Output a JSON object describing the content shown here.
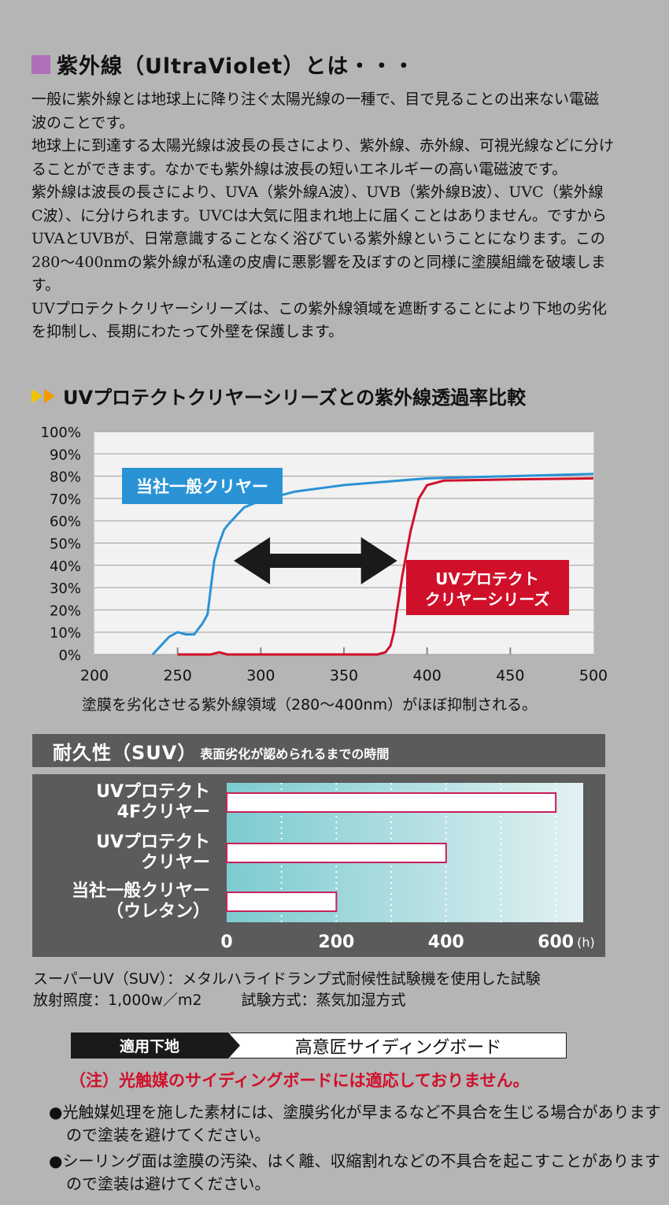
{
  "section": {
    "title": "紫外線（UltraViolet）とは・・・",
    "paragraphs": [
      "一般に紫外線とは地球上に降り注ぐ太陽光線の一種で、目で見ることの出来ない電磁波のことです。",
      "地球上に到達する太陽光線は波長の長さにより、紫外線、赤外線、可視光線などに分けることができます。なかでも紫外線は波長の短いエネルギーの高い電磁波です。",
      "紫外線は波長の長さにより、UVA（紫外線A波）、UVB（紫外線B波）、UVC（紫外線C波）、に分けられます。UVCは大気に阻まれ地上に届くことはありません。ですからUVAとUVBが、日常意識することなく浴びている紫外線ということになります。この280〜400nmの紫外線が私達の皮膚に悪影響を及ぼすのと同様に塗膜組織を破壊します。",
      "UVプロテクトクリヤーシリーズは、この紫外線領域を遮断することにより下地の劣化を抑制し、長期にわたって外壁を保護します。"
    ]
  },
  "chart_data": [
    {
      "type": "line",
      "title": "UVプロテクトクリヤーシリーズとの紫外線透過率比較",
      "x_ticks": [
        "200",
        "250",
        "300",
        "350",
        "400",
        "450",
        "500"
      ],
      "y_ticks": [
        "0%",
        "10%",
        "20%",
        "30%",
        "40%",
        "50%",
        "60%",
        "70%",
        "80%",
        "90%",
        "100%"
      ],
      "xlim": [
        200,
        500
      ],
      "ylim": [
        0,
        100
      ],
      "series": [
        {
          "name": "当社一般クリヤー",
          "color": "#2a93d5",
          "x": [
            235,
            240,
            245,
            250,
            255,
            260,
            263,
            265,
            268,
            270,
            272,
            275,
            278,
            280,
            285,
            290,
            300,
            320,
            350,
            400,
            450,
            500
          ],
          "y": [
            0,
            4,
            8,
            10,
            9,
            9,
            12,
            14,
            18,
            30,
            42,
            50,
            56,
            58,
            62,
            66,
            69,
            73,
            76,
            79,
            80,
            81
          ]
        },
        {
          "name": "UVプロテクト クリヤーシリーズ",
          "color": "#d0102a",
          "x": [
            250,
            270,
            275,
            280,
            285,
            300,
            350,
            370,
            375,
            378,
            380,
            382,
            385,
            390,
            395,
            400,
            410,
            450,
            500
          ],
          "y": [
            0,
            0,
            1,
            0,
            0,
            0,
            0,
            0,
            1,
            4,
            10,
            20,
            35,
            55,
            70,
            76,
            78,
            78.5,
            79
          ]
        }
      ],
      "arrow": {
        "from": 280,
        "to": 400
      },
      "caption": "塗膜を劣化させる紫外線領域（280〜400nm）がほぼ抑制される。",
      "grid": true
    },
    {
      "type": "bar",
      "title": "耐久性（SUV）",
      "subtitle": "表面劣化が認められるまでの時間",
      "categories": [
        "UVプロテクト 4Fクリヤー",
        "UVプロテクト クリヤー",
        "当社一般クリヤー （ウレタン）"
      ],
      "values": [
        600,
        400,
        200
      ],
      "x_ticks": [
        "0",
        "200",
        "400",
        "600"
      ],
      "unit": "(h)",
      "xlim": [
        0,
        650
      ]
    }
  ],
  "notes": {
    "line1": "スーパーUV（SUV）：メタルハライドランプ式耐候性試験機を使用した試験",
    "line2a": "放射照度：1,000w／m2",
    "line2b": "試験方式：蒸気加湿方式"
  },
  "substrate": {
    "label": "適用下地",
    "value": "高意匠サイディングボード"
  },
  "warning": "（注）光触媒のサイディングボードには適応しておりません。",
  "bullets": [
    "●光触媒処理を施した素材には、塗膜劣化が早まるなど不具合を生じる場合がありますので塗装を避けてください。",
    "●シーリング面は塗膜の汚染、はく離、収縮割れなどの不具合を起こすことがありますので塗装は避けてください。"
  ],
  "colors": {
    "blue": "#2a93d5",
    "red": "#d0102a",
    "bar_border": "#c8205a",
    "dark": "#5b5b5b"
  }
}
